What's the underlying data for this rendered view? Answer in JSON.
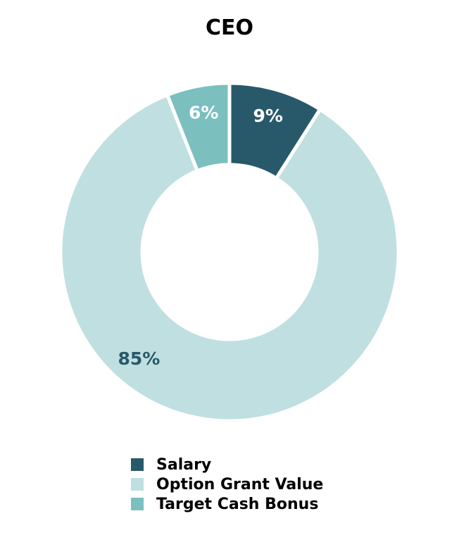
{
  "chart_data": {
    "type": "pie",
    "style": "donut",
    "title": "CEO",
    "slices": [
      {
        "name": "Salary",
        "value": 9,
        "label": "9%",
        "color": "#27596a",
        "label_color": "#ffffff"
      },
      {
        "name": "Option Grant Value",
        "value": 85,
        "label": "85%",
        "color": "#c0dfe0",
        "label_color": "#27596a"
      },
      {
        "name": "Target Cash Bonus",
        "value": 6,
        "label": "6%",
        "color": "#7bbfbf",
        "label_color": "#ffffff"
      }
    ],
    "legend_position": "bottom"
  }
}
